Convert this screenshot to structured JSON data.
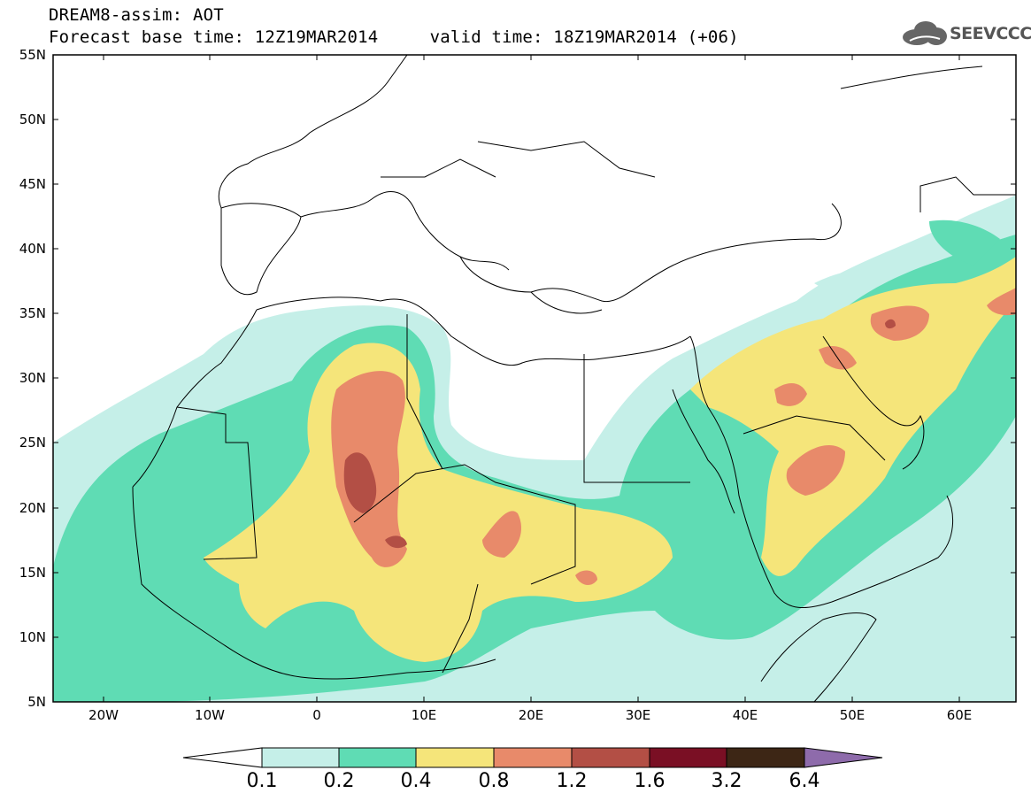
{
  "title": {
    "line1": "DREAM8-assim: AOT",
    "line2": "Forecast base time: 12Z19MAR2014     valid time: 18Z19MAR2014 (+06)"
  },
  "logo": {
    "text": "SEEVCCC",
    "icon": "cloud-icon"
  },
  "map": {
    "lat_labels": [
      "55N",
      "50N",
      "45N",
      "40N",
      "35N",
      "30N",
      "25N",
      "20N",
      "15N",
      "10N",
      "5N"
    ],
    "lon_labels": [
      "20W",
      "10W",
      "0",
      "10E",
      "20E",
      "30E",
      "40E",
      "50E",
      "60E"
    ],
    "extent": {
      "lon": [
        -25,
        65
      ],
      "lat": [
        5,
        55
      ]
    },
    "variable": "AOT"
  },
  "colorbar": {
    "labels": [
      "0.1",
      "0.2",
      "0.4",
      "0.8",
      "1.2",
      "1.6",
      "3.2",
      "6.4"
    ],
    "colors": [
      "#ffffff",
      "#c5efe8",
      "#5fdcb4",
      "#f5e57a",
      "#e88a6a",
      "#b34f45",
      "#7a0f24",
      "#3d2615",
      "#8e6bab"
    ]
  }
}
